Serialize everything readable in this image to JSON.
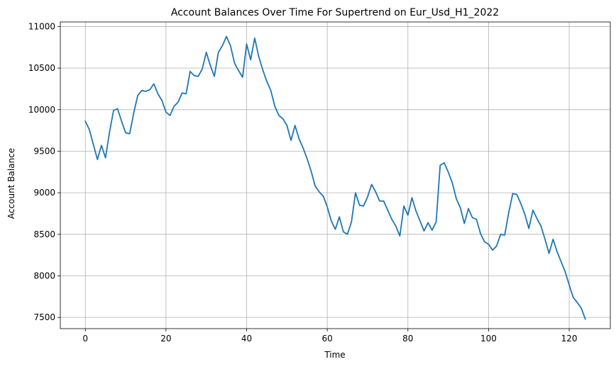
{
  "chart_data": {
    "type": "line",
    "title": "Account Balances Over Time For Supertrend on Eur_Usd_H1_2022",
    "xlabel": "Time",
    "ylabel": "Account Balance",
    "xlim": [
      -6.2,
      130.2
    ],
    "ylim": [
      7365,
      11055
    ],
    "xticks": [
      0,
      20,
      40,
      60,
      80,
      100,
      120
    ],
    "xtick_labels": [
      "0",
      "20",
      "40",
      "60",
      "80",
      "100",
      "120"
    ],
    "yticks": [
      7500,
      8000,
      8500,
      9000,
      9500,
      10000,
      10500,
      11000
    ],
    "ytick_labels": [
      "7500",
      "8000",
      "8500",
      "9000",
      "9500",
      "10000",
      "10500",
      "11000"
    ],
    "grid": true,
    "legend": "none",
    "series": [
      {
        "color": "#1f77b4",
        "x": [
          0,
          1,
          2,
          3,
          4,
          5,
          6,
          7,
          8,
          9,
          10,
          11,
          12,
          13,
          14,
          15,
          16,
          17,
          18,
          19,
          20,
          21,
          22,
          23,
          24,
          25,
          26,
          27,
          28,
          29,
          30,
          31,
          32,
          33,
          34,
          35,
          36,
          37,
          38,
          39,
          40,
          41,
          42,
          43,
          44,
          45,
          46,
          47,
          48,
          49,
          50,
          51,
          52,
          53,
          54,
          55,
          56,
          57,
          58,
          59,
          60,
          61,
          62,
          63,
          64,
          65,
          66,
          67,
          68,
          69,
          70,
          71,
          72,
          73,
          74,
          75,
          76,
          77,
          78,
          79,
          80,
          81,
          82,
          83,
          84,
          85,
          86,
          87,
          88,
          89,
          90,
          91,
          92,
          93,
          94,
          95,
          96,
          97,
          98,
          99,
          100,
          101,
          102,
          103,
          104,
          105,
          106,
          107,
          108,
          109,
          110,
          111,
          112,
          113,
          114,
          115,
          116,
          117,
          118,
          119,
          120,
          121,
          122,
          123,
          124
        ],
        "y": [
          9860,
          9760,
          9580,
          9400,
          9570,
          9420,
          9730,
          9990,
          10010,
          9860,
          9720,
          9710,
          9960,
          10170,
          10230,
          10220,
          10240,
          10310,
          10190,
          10110,
          9970,
          9930,
          10040,
          10090,
          10200,
          10190,
          10460,
          10410,
          10400,
          10490,
          10690,
          10530,
          10400,
          10690,
          10770,
          10880,
          10770,
          10560,
          10470,
          10390,
          10790,
          10600,
          10860,
          10640,
          10480,
          10340,
          10230,
          10040,
          9930,
          9890,
          9810,
          9630,
          9810,
          9650,
          9540,
          9410,
          9260,
          9080,
          9010,
          8960,
          8830,
          8660,
          8560,
          8710,
          8530,
          8500,
          8650,
          9000,
          8850,
          8840,
          8950,
          9100,
          9010,
          8900,
          8900,
          8790,
          8680,
          8600,
          8480,
          8840,
          8730,
          8940,
          8780,
          8660,
          8540,
          8640,
          8550,
          8650,
          9330,
          9360,
          9250,
          9120,
          8930,
          8820,
          8630,
          8810,
          8700,
          8680,
          8510,
          8410,
          8380,
          8310,
          8360,
          8500,
          8490,
          8760,
          8990,
          8980,
          8870,
          8740,
          8570,
          8790,
          8690,
          8600,
          8440,
          8270,
          8440,
          8290,
          8170,
          8050,
          7890,
          7740,
          7680,
          7610,
          7480
        ]
      }
    ]
  }
}
